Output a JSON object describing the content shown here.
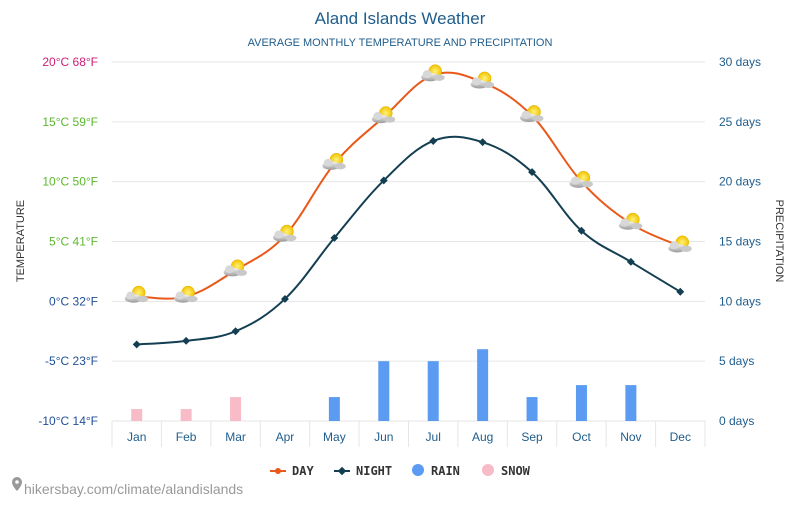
{
  "chart_data": {
    "type": "line",
    "title": "Aland Islands Weather",
    "subtitle": "AVERAGE MONTHLY TEMPERATURE AND PRECIPITATION",
    "ylabel": "TEMPERATURE",
    "y2label": "PRECIPITATION",
    "categories": [
      "Jan",
      "Feb",
      "Mar",
      "Apr",
      "May",
      "Jun",
      "Jul",
      "Aug",
      "Sep",
      "Oct",
      "Nov",
      "Dec"
    ],
    "ylim": [
      -10,
      20
    ],
    "y2lim": [
      0,
      30
    ],
    "y_ticks": [
      {
        "value": 20,
        "label": "20°C 68°F",
        "color": "#cc1f78"
      },
      {
        "value": 15,
        "label": "15°C 59°F",
        "color": "#5cb82e"
      },
      {
        "value": 10,
        "label": "10°C 50°F",
        "color": "#5cb82e"
      },
      {
        "value": 5,
        "label": "5°C 41°F",
        "color": "#5cb82e"
      },
      {
        "value": 0,
        "label": "0°C 32°F",
        "color": "#1f4f96"
      },
      {
        "value": -5,
        "label": "-5°C 23°F",
        "color": "#1f4f96"
      },
      {
        "value": -10,
        "label": "-10°C 14°F",
        "color": "#1f4f96"
      }
    ],
    "y2_ticks": [
      {
        "value": 30,
        "label": "30 days"
      },
      {
        "value": 25,
        "label": "25 days"
      },
      {
        "value": 20,
        "label": "20 days"
      },
      {
        "value": 15,
        "label": "15 days"
      },
      {
        "value": 10,
        "label": "10 days"
      },
      {
        "value": 5,
        "label": "5 days"
      },
      {
        "value": 0,
        "label": "0 days"
      }
    ],
    "series": [
      {
        "name": "DAY",
        "kind": "line",
        "color": "#e8591a",
        "values": [
          0.4,
          0.4,
          2.6,
          5.5,
          11.5,
          15.4,
          18.9,
          18.3,
          15.5,
          10.0,
          6.5,
          4.6
        ]
      },
      {
        "name": "NIGHT",
        "kind": "line",
        "color": "#143f52",
        "values": [
          -3.6,
          -3.3,
          -2.5,
          0.2,
          5.3,
          10.1,
          13.4,
          13.3,
          10.8,
          5.9,
          3.3,
          0.8
        ]
      },
      {
        "name": "RAIN",
        "kind": "bar",
        "color": "#5b9cf2",
        "values": [
          0,
          0,
          0,
          0,
          2,
          5,
          5,
          6,
          2,
          3,
          3,
          0
        ]
      },
      {
        "name": "SNOW",
        "kind": "bar",
        "color": "#f7bcc8",
        "values": [
          1,
          1,
          2,
          0,
          0,
          0,
          0,
          0,
          0,
          0,
          0,
          0
        ]
      }
    ],
    "grid": true,
    "legend_position": "bottom-center"
  },
  "colors": {
    "title": "#1f5d8c",
    "right_axis": "#1f5d8c",
    "month_labels": "#1f5d8c",
    "axis_title": "#333333",
    "grid": "#e6e6e6",
    "weather_icon": "partly-cloudy-sun-icon"
  },
  "footer": {
    "url": "hikersbay.com/climate/alandislands"
  }
}
